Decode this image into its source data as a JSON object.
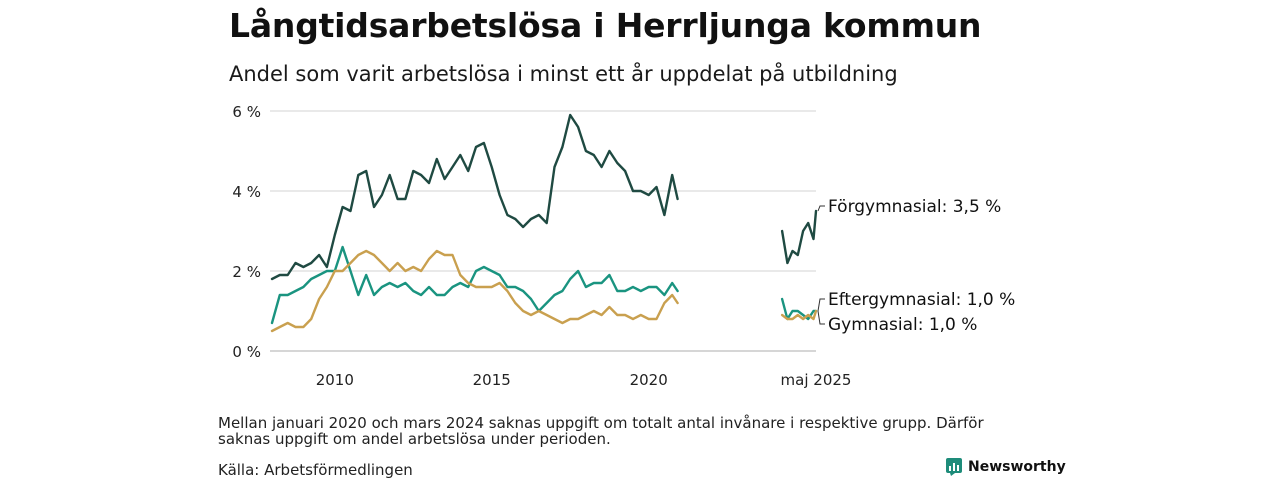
{
  "header": {
    "title": "Långtidsarbetslösa i Herrljunga kommun",
    "subtitle": "Andel som varit arbetslösa i minst ett år uppdelat på utbildning"
  },
  "footer": {
    "note": "Mellan januari 2020 och mars 2024 saknas uppgift om totalt antal invånare i respektive grupp. Därför saknas uppgift om andel arbetslösa under perioden.",
    "source": "Källa: Arbetsförmedlingen",
    "brand": "Newsworthy",
    "brand_color": "#1e8c7a"
  },
  "chart_data": {
    "type": "line",
    "title": "Långtidsarbetslösa i Herrljunga kommun",
    "subtitle": "Andel som varit arbetslösa i minst ett år uppdelat på utbildning",
    "ylim": [
      0,
      6
    ],
    "y_ticks": [
      0,
      2,
      4,
      6
    ],
    "y_tick_labels": [
      "0 %",
      "2 %",
      "4 %",
      "6 %"
    ],
    "x_tick_labels": [
      "2010",
      "2015",
      "2020",
      "maj 2025"
    ],
    "x_tick_positions": [
      2010.0,
      2015.0,
      2020.0,
      2025.33
    ],
    "grid": true,
    "series": [
      {
        "name": "Förgymnasial",
        "label": "Förgymnasial: 3,5 %",
        "color": "#1f4a42",
        "segments": [
          {
            "x": [
              2008.0,
              2008.25,
              2008.5,
              2008.75,
              2009.0,
              2009.25,
              2009.5,
              2009.75,
              2010.0,
              2010.25,
              2010.5,
              2010.75,
              2011.0,
              2011.25,
              2011.5,
              2011.75,
              2012.0,
              2012.25,
              2012.5,
              2012.75,
              2013.0,
              2013.25,
              2013.5,
              2013.75,
              2014.0,
              2014.25,
              2014.5,
              2014.75,
              2015.0,
              2015.25,
              2015.5,
              2015.75,
              2016.0,
              2016.25,
              2016.5,
              2016.75,
              2017.0,
              2017.25,
              2017.5,
              2017.75,
              2018.0,
              2018.25,
              2018.5,
              2018.75,
              2019.0,
              2019.25,
              2019.5,
              2019.75,
              2020.0,
              2020.25,
              2020.5,
              2020.75,
              2020.92
            ],
            "y": [
              1.8,
              1.9,
              1.9,
              2.2,
              2.1,
              2.2,
              2.4,
              2.1,
              2.9,
              3.6,
              3.5,
              4.4,
              4.5,
              3.6,
              3.9,
              4.4,
              3.8,
              3.8,
              4.5,
              4.4,
              4.2,
              4.8,
              4.3,
              4.6,
              4.9,
              4.5,
              5.1,
              5.2,
              4.6,
              3.9,
              3.4,
              3.3,
              3.1,
              3.3,
              3.4,
              3.2,
              4.6,
              5.1,
              5.9,
              5.6,
              5.0,
              4.9,
              4.6,
              5.0,
              4.7,
              4.5,
              4.0,
              4.0,
              3.9,
              4.1,
              3.4,
              4.4,
              3.8
            ]
          },
          {
            "x": [
              2024.25,
              2024.42,
              2024.58,
              2024.75,
              2024.92,
              2025.08,
              2025.25,
              2025.33
            ],
            "y": [
              3.0,
              2.2,
              2.5,
              2.4,
              3.0,
              3.2,
              2.8,
              3.5
            ]
          }
        ]
      },
      {
        "name": "Eftergymnasial",
        "label": "Eftergymnasial: 1,0 %",
        "color": "#1a9480",
        "segments": [
          {
            "x": [
              2008.0,
              2008.25,
              2008.5,
              2008.75,
              2009.0,
              2009.25,
              2009.5,
              2009.75,
              2010.0,
              2010.25,
              2010.5,
              2010.75,
              2011.0,
              2011.25,
              2011.5,
              2011.75,
              2012.0,
              2012.25,
              2012.5,
              2012.75,
              2013.0,
              2013.25,
              2013.5,
              2013.75,
              2014.0,
              2014.25,
              2014.5,
              2014.75,
              2015.0,
              2015.25,
              2015.5,
              2015.75,
              2016.0,
              2016.25,
              2016.5,
              2016.75,
              2017.0,
              2017.25,
              2017.5,
              2017.75,
              2018.0,
              2018.25,
              2018.5,
              2018.75,
              2019.0,
              2019.25,
              2019.5,
              2019.75,
              2020.0,
              2020.25,
              2020.5,
              2020.75,
              2020.92
            ],
            "y": [
              0.7,
              1.4,
              1.4,
              1.5,
              1.6,
              1.8,
              1.9,
              2.0,
              2.0,
              2.6,
              2.0,
              1.4,
              1.9,
              1.4,
              1.6,
              1.7,
              1.6,
              1.7,
              1.5,
              1.4,
              1.6,
              1.4,
              1.4,
              1.6,
              1.7,
              1.6,
              2.0,
              2.1,
              2.0,
              1.9,
              1.6,
              1.6,
              1.5,
              1.3,
              1.0,
              1.2,
              1.4,
              1.5,
              1.8,
              2.0,
              1.6,
              1.7,
              1.7,
              1.9,
              1.5,
              1.5,
              1.6,
              1.5,
              1.6,
              1.6,
              1.4,
              1.7,
              1.5
            ]
          },
          {
            "x": [
              2024.25,
              2024.42,
              2024.58,
              2024.75,
              2024.92,
              2025.08,
              2025.25,
              2025.33
            ],
            "y": [
              1.3,
              0.8,
              1.0,
              1.0,
              0.9,
              0.8,
              1.0,
              1.0
            ]
          }
        ]
      },
      {
        "name": "Gymnasial",
        "label": "Gymnasial: 1,0 %",
        "color": "#c9a04f",
        "segments": [
          {
            "x": [
              2008.0,
              2008.25,
              2008.5,
              2008.75,
              2009.0,
              2009.25,
              2009.5,
              2009.75,
              2010.0,
              2010.25,
              2010.5,
              2010.75,
              2011.0,
              2011.25,
              2011.5,
              2011.75,
              2012.0,
              2012.25,
              2012.5,
              2012.75,
              2013.0,
              2013.25,
              2013.5,
              2013.75,
              2014.0,
              2014.25,
              2014.5,
              2014.75,
              2015.0,
              2015.25,
              2015.5,
              2015.75,
              2016.0,
              2016.25,
              2016.5,
              2016.75,
              2017.0,
              2017.25,
              2017.5,
              2017.75,
              2018.0,
              2018.25,
              2018.5,
              2018.75,
              2019.0,
              2019.25,
              2019.5,
              2019.75,
              2020.0,
              2020.25,
              2020.5,
              2020.75,
              2020.92
            ],
            "y": [
              0.5,
              0.6,
              0.7,
              0.6,
              0.6,
              0.8,
              1.3,
              1.6,
              2.0,
              2.0,
              2.2,
              2.4,
              2.5,
              2.4,
              2.2,
              2.0,
              2.2,
              2.0,
              2.1,
              2.0,
              2.3,
              2.5,
              2.4,
              2.4,
              1.9,
              1.7,
              1.6,
              1.6,
              1.6,
              1.7,
              1.5,
              1.2,
              1.0,
              0.9,
              1.0,
              0.9,
              0.8,
              0.7,
              0.8,
              0.8,
              0.9,
              1.0,
              0.9,
              1.1,
              0.9,
              0.9,
              0.8,
              0.9,
              0.8,
              0.8,
              1.2,
              1.4,
              1.2
            ]
          },
          {
            "x": [
              2024.25,
              2024.42,
              2024.58,
              2024.75,
              2024.92,
              2025.08,
              2025.25,
              2025.33
            ],
            "y": [
              0.9,
              0.8,
              0.8,
              0.9,
              0.8,
              0.9,
              0.8,
              1.0
            ]
          }
        ]
      }
    ]
  }
}
